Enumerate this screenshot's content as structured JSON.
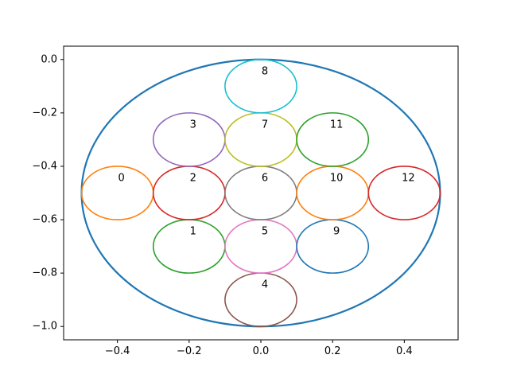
{
  "chart_data": {
    "type": "scatter",
    "title": "",
    "xlabel": "",
    "ylabel": "",
    "xlim": [
      -0.55,
      0.55
    ],
    "ylim": [
      -1.05,
      0.05
    ],
    "grid": false,
    "x_ticks": [
      -0.4,
      -0.2,
      0.0,
      0.2,
      0.4
    ],
    "x_tick_labels": [
      "−0.4",
      "−0.2",
      "0.0",
      "0.2",
      "0.4"
    ],
    "y_ticks": [
      0.0,
      -0.2,
      -0.4,
      -0.6,
      -0.8,
      -1.0
    ],
    "y_tick_labels": [
      "0.0",
      "−0.2",
      "−0.4",
      "−0.6",
      "−0.8",
      "−1.0"
    ],
    "outer_circle": {
      "cx": 0.0,
      "cy": -0.5,
      "r": 0.5,
      "color": "#1f77b4"
    },
    "circles": [
      {
        "label": "0",
        "cx": -0.4,
        "cy": -0.5,
        "r": 0.1,
        "color": "#ff7f0e"
      },
      {
        "label": "1",
        "cx": -0.2,
        "cy": -0.7,
        "r": 0.1,
        "color": "#2ca02c"
      },
      {
        "label": "2",
        "cx": -0.2,
        "cy": -0.5,
        "r": 0.1,
        "color": "#d62728"
      },
      {
        "label": "3",
        "cx": -0.2,
        "cy": -0.3,
        "r": 0.1,
        "color": "#9467bd"
      },
      {
        "label": "4",
        "cx": 0.0,
        "cy": -0.9,
        "r": 0.1,
        "color": "#8c564b"
      },
      {
        "label": "5",
        "cx": 0.0,
        "cy": -0.7,
        "r": 0.1,
        "color": "#e377c2"
      },
      {
        "label": "6",
        "cx": 0.0,
        "cy": -0.5,
        "r": 0.1,
        "color": "#7f7f7f"
      },
      {
        "label": "7",
        "cx": 0.0,
        "cy": -0.3,
        "r": 0.1,
        "color": "#bcbd22"
      },
      {
        "label": "8",
        "cx": 0.0,
        "cy": -0.1,
        "r": 0.1,
        "color": "#17becf"
      },
      {
        "label": "9",
        "cx": 0.2,
        "cy": -0.7,
        "r": 0.1,
        "color": "#1f77b4"
      },
      {
        "label": "10",
        "cx": 0.2,
        "cy": -0.5,
        "r": 0.1,
        "color": "#ff7f0e"
      },
      {
        "label": "11",
        "cx": 0.2,
        "cy": -0.3,
        "r": 0.1,
        "color": "#2ca02c"
      },
      {
        "label": "12",
        "cx": 0.4,
        "cy": -0.5,
        "r": 0.1,
        "color": "#d62728"
      }
    ]
  }
}
